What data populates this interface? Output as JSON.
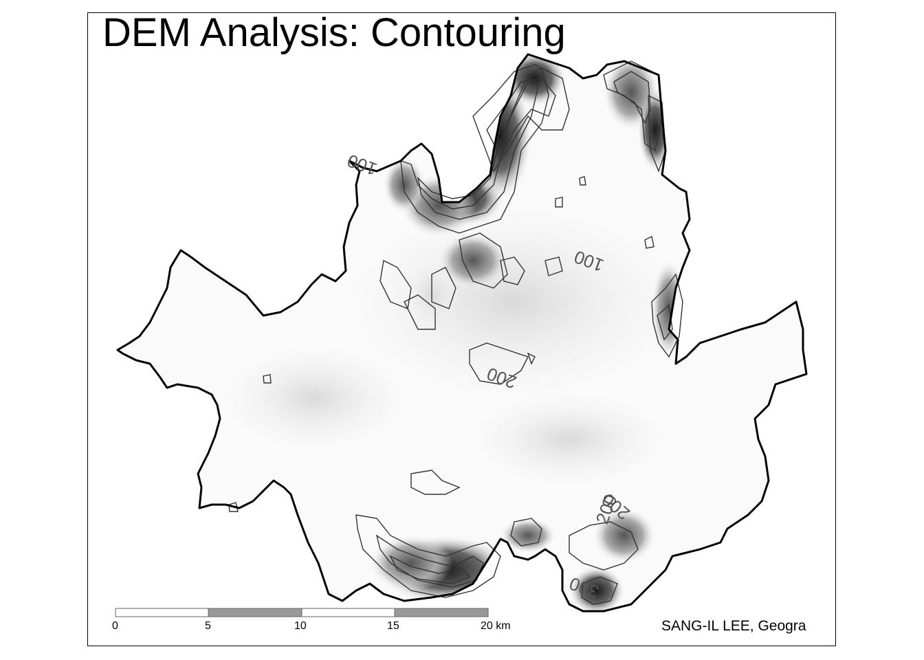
{
  "title": "DEM Analysis: Contouring",
  "credit": "SANG-IL LEE, Geogra",
  "scale_bar": {
    "ticks": [
      "0",
      "5",
      "10",
      "15",
      "20 km"
    ],
    "colors": [
      "#ffffff",
      "#999999"
    ]
  },
  "contour_labels": [
    "100",
    "100",
    "200",
    "200",
    "200",
    "300"
  ],
  "colors": {
    "boundary": "#000000",
    "contour_line": "#333333",
    "terrain_low": "#ffffff",
    "terrain_high": "#1a1a1a"
  }
}
